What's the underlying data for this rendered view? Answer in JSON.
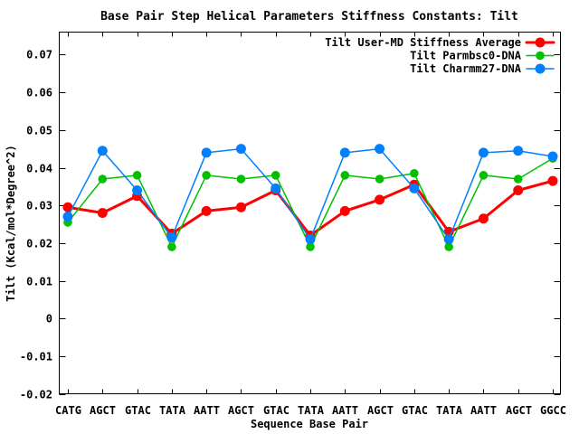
{
  "window": {
    "background": "#ffffff",
    "text_color": "#000000",
    "axis_color": "#000000"
  },
  "chart_data": {
    "type": "line",
    "title": "Base Pair Step Helical Parameters Stiffness Constants: Tilt",
    "xlabel": "Sequence Base Pair",
    "ylabel": "Tilt (Kcal/mol*Degree^2)",
    "categories": [
      "CATG",
      "AGCT",
      "GTAC",
      "TATA",
      "AATT",
      "AGCT",
      "GTAC",
      "TATA",
      "AATT",
      "AGCT",
      "GTAC",
      "TATA",
      "AATT",
      "AGCT",
      "GGCC"
    ],
    "series": [
      {
        "name": "Tilt User-MD Stiffness Average",
        "color": "#ff0000",
        "marker": "filled-circle",
        "marker_radius": 5.5,
        "line_width": 3,
        "values": [
          0.0295,
          0.028,
          0.0325,
          0.0225,
          0.0285,
          0.0295,
          0.034,
          0.022,
          0.0285,
          0.0315,
          0.0355,
          0.023,
          0.0265,
          0.034,
          0.0365
        ]
      },
      {
        "name": "Tilt Parmbsc0-DNA",
        "color": "#00c000",
        "marker": "filled-circle",
        "marker_radius": 4.8,
        "line_width": 1.5,
        "values": [
          0.0255,
          0.037,
          0.038,
          0.019,
          0.038,
          0.037,
          0.038,
          0.019,
          0.038,
          0.037,
          0.0385,
          0.019,
          0.038,
          0.037,
          0.0425
        ]
      },
      {
        "name": "Tilt Charmm27-DNA",
        "color": "#0080ff",
        "marker": "filled-circle",
        "marker_radius": 5.5,
        "line_width": 1.5,
        "values": [
          0.027,
          0.0445,
          0.034,
          0.0215,
          0.044,
          0.045,
          0.0345,
          0.021,
          0.044,
          0.045,
          0.0345,
          0.021,
          0.044,
          0.0445,
          0.043
        ]
      }
    ],
    "ylim": [
      -0.02,
      0.076
    ],
    "yticks": [
      {
        "value": -0.02,
        "label": "-0.02"
      },
      {
        "value": -0.01,
        "label": "-0.01"
      },
      {
        "value": 0,
        "label": "0"
      },
      {
        "value": 0.01,
        "label": "0.01"
      },
      {
        "value": 0.02,
        "label": "0.02"
      },
      {
        "value": 0.03,
        "label": "0.03"
      },
      {
        "value": 0.04,
        "label": "0.04"
      },
      {
        "value": 0.05,
        "label": "0.05"
      },
      {
        "value": 0.06,
        "label": "0.06"
      },
      {
        "value": 0.07,
        "label": "0.07"
      }
    ],
    "legend_position": "top-right-inside",
    "grid": false
  }
}
